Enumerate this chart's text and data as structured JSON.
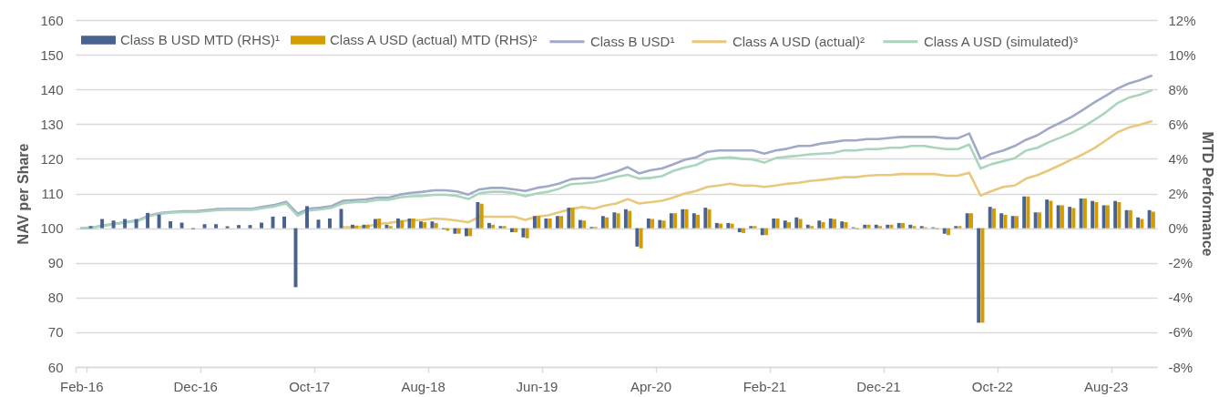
{
  "chart_data": {
    "type": "bar",
    "categories": [
      "Feb-16",
      null,
      null,
      null,
      null,
      null,
      null,
      null,
      null,
      null,
      "Dec-16",
      null,
      null,
      null,
      null,
      null,
      null,
      null,
      null,
      null,
      "Oct-17",
      null,
      null,
      null,
      null,
      null,
      null,
      null,
      null,
      null,
      "Aug-18",
      null,
      null,
      null,
      null,
      null,
      null,
      null,
      null,
      null,
      "Jun-19",
      null,
      null,
      null,
      null,
      null,
      null,
      null,
      null,
      null,
      "Apr-20",
      null,
      null,
      null,
      null,
      null,
      null,
      null,
      null,
      null,
      "Feb-21",
      null,
      null,
      null,
      null,
      null,
      null,
      null,
      null,
      null,
      "Dec-21",
      null,
      null,
      null,
      null,
      null,
      null,
      null,
      null,
      null,
      "Oct-22",
      null,
      null,
      null,
      null,
      null,
      null,
      null,
      null,
      null,
      "Aug-23",
      null,
      null,
      null,
      null
    ],
    "ylabel": "NAV per Share",
    "y2label": "MTD Performance",
    "ylim": [
      60,
      160
    ],
    "yticks": [
      60,
      70,
      80,
      90,
      100,
      110,
      120,
      130,
      140,
      150,
      160
    ],
    "y2lim": [
      -8,
      12
    ],
    "y2ticks": [
      {
        "value": -8,
        "label": "-8%"
      },
      {
        "value": -6,
        "label": "-6%"
      },
      {
        "value": -4,
        "label": "-4%"
      },
      {
        "value": -2,
        "label": "-2%"
      },
      {
        "value": 0,
        "label": "0%"
      },
      {
        "value": 2,
        "label": "2%"
      },
      {
        "value": 4,
        "label": "4%"
      },
      {
        "value": 6,
        "label": "6%"
      },
      {
        "value": 8,
        "label": "8%"
      },
      {
        "value": 10,
        "label": "10%"
      },
      {
        "value": 12,
        "label": "12%"
      }
    ],
    "grid": "y",
    "legend": "top",
    "series": [
      {
        "name": "Class B USD MTD (RHS)¹",
        "axis": "y2",
        "color": "#49628f",
        "values": [
          null,
          0.12,
          0.53,
          0.44,
          0.53,
          0.53,
          0.88,
          0.79,
          0.4,
          0.32,
          -0.05,
          0.23,
          0.23,
          0.11,
          0.18,
          0.18,
          0.32,
          0.67,
          0.67,
          -3.4,
          1.27,
          0.49,
          0.56,
          1.11,
          0.2,
          0.2,
          0.53,
          0.2,
          0.56,
          0.56,
          0.39,
          0.39,
          -0.05,
          -0.32,
          -0.46,
          1.5,
          0.3,
          0.12,
          -0.23,
          -0.53,
          0.7,
          0.56,
          0.7,
          1.18,
          0.47,
          0.07,
          0.7,
          0.91,
          1.09,
          -1.06,
          0.56,
          0.47,
          0.86,
          1.09,
          0.86,
          1.18,
          0.3,
          0.3,
          -0.23,
          0.12,
          -0.4,
          0.56,
          0.44,
          0.62,
          0.2,
          0.44,
          0.56,
          0.39,
          0.05,
          0.2,
          0.2,
          0.2,
          0.3,
          0.2,
          0.12,
          0.05,
          -0.32,
          0.12,
          0.86,
          -5.45,
          1.23,
          0.86,
          0.7,
          1.83,
          0.91,
          1.65,
          1.32,
          1.23,
          1.71,
          1.57,
          1.32,
          1.57,
          1.04,
          0.62,
          1.04
        ]
      },
      {
        "name": "Class A USD (actual) MTD (RHS)²",
        "axis": "y2",
        "color": "#d39c00",
        "values": [
          null,
          null,
          null,
          null,
          null,
          null,
          null,
          null,
          null,
          null,
          null,
          null,
          null,
          null,
          null,
          null,
          null,
          null,
          null,
          null,
          null,
          null,
          null,
          null,
          0.15,
          0.2,
          0.56,
          0.12,
          0.44,
          0.56,
          0.35,
          0.3,
          -0.15,
          -0.32,
          -0.46,
          1.41,
          0.2,
          0.12,
          -0.23,
          -0.58,
          0.7,
          0.56,
          0.7,
          1.18,
          0.44,
          0.07,
          0.62,
          0.86,
          1.0,
          -1.16,
          0.53,
          0.44,
          0.86,
          1.09,
          0.77,
          1.09,
          0.26,
          0.26,
          -0.28,
          0.12,
          -0.4,
          0.56,
          0.35,
          0.53,
          0.12,
          0.35,
          0.53,
          0.35,
          -0.05,
          0.2,
          0.12,
          0.2,
          0.3,
          0.12,
          0.05,
          -0.05,
          -0.4,
          0.12,
          0.86,
          -5.45,
          1.14,
          0.77,
          0.7,
          1.83,
          0.91,
          1.58,
          1.32,
          1.16,
          1.71,
          1.5,
          1.32,
          1.5,
          1.04,
          0.53,
          0.95
        ]
      },
      {
        "name": "Class B USD¹",
        "type": "line",
        "color": "#a0aac8",
        "values": [
          100.0,
          100.2,
          100.8,
          101.3,
          101.8,
          102.3,
          103.7,
          104.4,
          104.7,
          104.9,
          104.9,
          105.2,
          105.5,
          105.6,
          105.6,
          105.6,
          106.2,
          106.7,
          107.6,
          104.2,
          105.6,
          105.9,
          106.4,
          107.9,
          108.1,
          108.3,
          108.8,
          108.8,
          109.7,
          110.2,
          110.5,
          110.9,
          110.9,
          110.6,
          109.7,
          111.2,
          111.6,
          111.6,
          111.2,
          110.7,
          111.6,
          112.1,
          112.9,
          114.1,
          114.4,
          114.4,
          115.4,
          116.3,
          117.6,
          115.8,
          116.7,
          117.2,
          118.4,
          119.7,
          120.4,
          122.0,
          122.4,
          122.4,
          122.4,
          122.4,
          121.5,
          122.4,
          122.9,
          123.7,
          123.7,
          124.4,
          124.8,
          125.3,
          125.3,
          125.7,
          125.7,
          126.0,
          126.3,
          126.3,
          126.3,
          126.3,
          125.9,
          125.9,
          127.3,
          120.0,
          121.5,
          122.4,
          123.7,
          125.5,
          126.8,
          128.8,
          130.4,
          132.1,
          134.1,
          136.3,
          138.2,
          140.2,
          141.7,
          142.7,
          143.9
        ]
      },
      {
        "name": "Class A USD (actual)²",
        "type": "line",
        "color": "#e8c87a",
        "values": [
          null,
          null,
          null,
          null,
          null,
          null,
          null,
          null,
          null,
          null,
          null,
          null,
          null,
          null,
          null,
          null,
          null,
          null,
          null,
          null,
          null,
          null,
          null,
          100.3,
          100.3,
          100.4,
          101.2,
          101.5,
          102.0,
          102.3,
          102.4,
          102.8,
          102.6,
          102.2,
          101.7,
          103.3,
          103.3,
          103.3,
          103.3,
          102.4,
          103.3,
          103.7,
          104.6,
          105.5,
          106.1,
          105.6,
          106.5,
          107.1,
          108.4,
          107.1,
          107.5,
          107.9,
          108.8,
          110.0,
          110.7,
          111.9,
          112.3,
          112.8,
          112.3,
          112.3,
          111.9,
          112.3,
          112.8,
          113.1,
          113.6,
          113.9,
          114.3,
          114.7,
          114.7,
          115.1,
          115.3,
          115.3,
          115.6,
          115.6,
          115.6,
          115.6,
          115.1,
          115.1,
          116.0,
          109.4,
          110.7,
          111.9,
          112.3,
          114.3,
          115.3,
          116.7,
          118.2,
          119.8,
          121.3,
          123.1,
          125.3,
          127.6,
          129.0,
          129.8,
          130.8
        ]
      },
      {
        "name": "Class A USD (simulated)³",
        "type": "line",
        "color": "#a9d5bd",
        "values": [
          100.0,
          100.2,
          100.7,
          101.2,
          101.7,
          102.1,
          103.5,
          104.2,
          104.5,
          104.6,
          104.6,
          104.9,
          105.2,
          105.3,
          105.3,
          105.3,
          105.8,
          106.3,
          107.1,
          103.6,
          105.1,
          105.4,
          105.9,
          107.2,
          107.5,
          107.6,
          108.2,
          108.2,
          108.9,
          109.2,
          109.3,
          109.6,
          109.6,
          109.3,
          108.4,
          110.1,
          110.5,
          110.5,
          110.1,
          109.2,
          110.0,
          110.5,
          111.4,
          112.7,
          112.9,
          113.2,
          113.8,
          114.8,
          115.4,
          114.3,
          114.5,
          115.0,
          116.5,
          117.5,
          118.2,
          119.7,
          120.2,
          120.4,
          120.0,
          119.8,
          118.9,
          120.2,
          120.6,
          120.9,
          121.3,
          121.5,
          121.7,
          122.4,
          122.4,
          122.8,
          122.8,
          123.2,
          123.2,
          123.7,
          123.7,
          123.2,
          122.8,
          122.8,
          124.1,
          117.2,
          118.5,
          119.3,
          120.2,
          122.4,
          123.2,
          124.8,
          126.1,
          127.5,
          129.2,
          131.2,
          133.4,
          136.0,
          137.6,
          138.5,
          139.7
        ]
      }
    ]
  }
}
